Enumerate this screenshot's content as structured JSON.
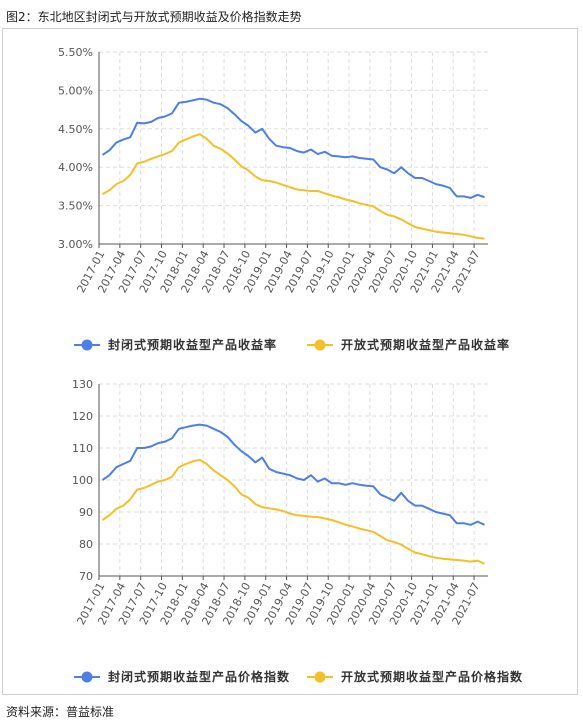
{
  "figure": {
    "title": "图2：东北地区封闭式与开放式预期收益及价格指数走势",
    "source": "资料来源：普益标准"
  },
  "colors": {
    "series1": "#4e7fe7",
    "series2": "#f6bf26",
    "grid": "#dddddd",
    "axis": "#555555"
  },
  "chart_data": [
    {
      "type": "line",
      "x": [
        "2017-01",
        "2017-02",
        "2017-03",
        "2017-04",
        "2017-05",
        "2017-06",
        "2017-07",
        "2017-08",
        "2017-09",
        "2017-10",
        "2017-11",
        "2017-12",
        "2018-01",
        "2018-02",
        "2018-03",
        "2018-04",
        "2018-05",
        "2018-06",
        "2018-07",
        "2018-08",
        "2018-09",
        "2018-10",
        "2018-11",
        "2018-12",
        "2019-01",
        "2019-02",
        "2019-03",
        "2019-04",
        "2019-05",
        "2019-06",
        "2019-07",
        "2019-08",
        "2019-09",
        "2019-10",
        "2019-11",
        "2019-12",
        "2020-01",
        "2020-02",
        "2020-03",
        "2020-04",
        "2020-05",
        "2020-06",
        "2020-07",
        "2020-08",
        "2020-09",
        "2020-10",
        "2020-11",
        "2020-12",
        "2021-01",
        "2021-02",
        "2021-03",
        "2021-04",
        "2021-05",
        "2021-06",
        "2021-07",
        "2021-08"
      ],
      "x_tick_labels": [
        "2017-01",
        "2017-04",
        "2017-07",
        "2017-10",
        "2018-01",
        "2018-04",
        "2018-07",
        "2018-10",
        "2019-01",
        "2019-04",
        "2019-07",
        "2019-10",
        "2020-01",
        "2020-04",
        "2020-07",
        "2020-10",
        "2021-01",
        "2021-04",
        "2021-07"
      ],
      "y_ticks": [
        "3.00%",
        "3.50%",
        "4.00%",
        "4.50%",
        "5.00%",
        "5.50%"
      ],
      "ylim": [
        3.0,
        5.5
      ],
      "unit": "%",
      "grid": true,
      "legend_position": "bottom",
      "series": [
        {
          "name": "封闭式预期收益型产品收益率",
          "color": "#4e7fe7",
          "values": [
            4.16,
            4.22,
            4.32,
            4.36,
            4.39,
            4.58,
            4.57,
            4.59,
            4.64,
            4.66,
            4.7,
            4.84,
            4.85,
            4.87,
            4.89,
            4.88,
            4.84,
            4.82,
            4.77,
            4.69,
            4.6,
            4.54,
            4.45,
            4.5,
            4.37,
            4.28,
            4.26,
            4.25,
            4.21,
            4.19,
            4.23,
            4.17,
            4.2,
            4.15,
            4.14,
            4.13,
            4.14,
            4.12,
            4.11,
            4.1,
            4.0,
            3.97,
            3.92,
            4.0,
            3.92,
            3.86,
            3.86,
            3.82,
            3.78,
            3.76,
            3.73,
            3.62,
            3.62,
            3.6,
            3.64,
            3.61
          ]
        },
        {
          "name": "开放式预期收益型产品收益率",
          "color": "#f6bf26",
          "values": [
            3.65,
            3.7,
            3.78,
            3.82,
            3.9,
            4.05,
            4.07,
            4.11,
            4.14,
            4.17,
            4.21,
            4.32,
            4.36,
            4.4,
            4.43,
            4.37,
            4.28,
            4.24,
            4.18,
            4.1,
            4.01,
            3.96,
            3.88,
            3.83,
            3.82,
            3.8,
            3.77,
            3.74,
            3.71,
            3.7,
            3.69,
            3.69,
            3.66,
            3.63,
            3.61,
            3.58,
            3.56,
            3.53,
            3.51,
            3.49,
            3.43,
            3.38,
            3.36,
            3.32,
            3.27,
            3.22,
            3.2,
            3.18,
            3.16,
            3.15,
            3.14,
            3.13,
            3.12,
            3.1,
            3.08,
            3.07
          ]
        }
      ]
    },
    {
      "type": "line",
      "x": [
        "2017-01",
        "2017-02",
        "2017-03",
        "2017-04",
        "2017-05",
        "2017-06",
        "2017-07",
        "2017-08",
        "2017-09",
        "2017-10",
        "2017-11",
        "2017-12",
        "2018-01",
        "2018-02",
        "2018-03",
        "2018-04",
        "2018-05",
        "2018-06",
        "2018-07",
        "2018-08",
        "2018-09",
        "2018-10",
        "2018-11",
        "2018-12",
        "2019-01",
        "2019-02",
        "2019-03",
        "2019-04",
        "2019-05",
        "2019-06",
        "2019-07",
        "2019-08",
        "2019-09",
        "2019-10",
        "2019-11",
        "2019-12",
        "2020-01",
        "2020-02",
        "2020-03",
        "2020-04",
        "2020-05",
        "2020-06",
        "2020-07",
        "2020-08",
        "2020-09",
        "2020-10",
        "2020-11",
        "2020-12",
        "2021-01",
        "2021-02",
        "2021-03",
        "2021-04",
        "2021-05",
        "2021-06",
        "2021-07",
        "2021-08"
      ],
      "x_tick_labels": [
        "2017-01",
        "2017-04",
        "2017-07",
        "2017-10",
        "2018-01",
        "2018-04",
        "2018-07",
        "2018-10",
        "2019-01",
        "2019-04",
        "2019-07",
        "2019-10",
        "2020-01",
        "2020-04",
        "2020-07",
        "2020-10",
        "2021-01",
        "2021-04",
        "2021-07"
      ],
      "y_ticks": [
        "70",
        "80",
        "90",
        "100",
        "110",
        "120",
        "130"
      ],
      "ylim": [
        70,
        130
      ],
      "unit": "",
      "grid": true,
      "legend_position": "bottom",
      "series": [
        {
          "name": "封闭式预期收益型产品价格指数",
          "color": "#4e7fe7",
          "values": [
            100.0,
            101.5,
            104.0,
            105.0,
            106.0,
            110.0,
            110.0,
            110.5,
            111.5,
            112.0,
            113.0,
            116.0,
            116.5,
            117.0,
            117.3,
            117.0,
            116.0,
            115.0,
            113.5,
            111.0,
            109.0,
            107.5,
            105.5,
            107.0,
            103.5,
            102.5,
            102.0,
            101.5,
            100.5,
            100.0,
            101.5,
            99.5,
            100.5,
            99.0,
            99.0,
            98.5,
            99.0,
            98.5,
            98.2,
            98.0,
            95.5,
            94.5,
            93.5,
            96.0,
            93.5,
            92.0,
            92.0,
            91.0,
            90.0,
            89.5,
            89.0,
            86.5,
            86.5,
            86.0,
            87.0,
            86.0
          ]
        },
        {
          "name": "开放式预期收益型产品价格指数",
          "color": "#f6bf26",
          "values": [
            87.5,
            89.0,
            91.0,
            92.0,
            94.0,
            97.0,
            97.5,
            98.5,
            99.5,
            100.0,
            101.0,
            104.0,
            105.0,
            105.8,
            106.3,
            105.0,
            103.0,
            101.5,
            100.0,
            98.0,
            95.5,
            94.5,
            92.5,
            91.5,
            91.2,
            90.8,
            90.3,
            89.5,
            89.0,
            88.8,
            88.5,
            88.4,
            88.0,
            87.5,
            86.8,
            86.0,
            85.5,
            84.8,
            84.3,
            83.8,
            82.5,
            81.2,
            80.6,
            79.8,
            78.5,
            77.3,
            76.8,
            76.2,
            75.7,
            75.4,
            75.2,
            75.0,
            74.8,
            74.5,
            74.8,
            73.8
          ]
        }
      ]
    }
  ]
}
